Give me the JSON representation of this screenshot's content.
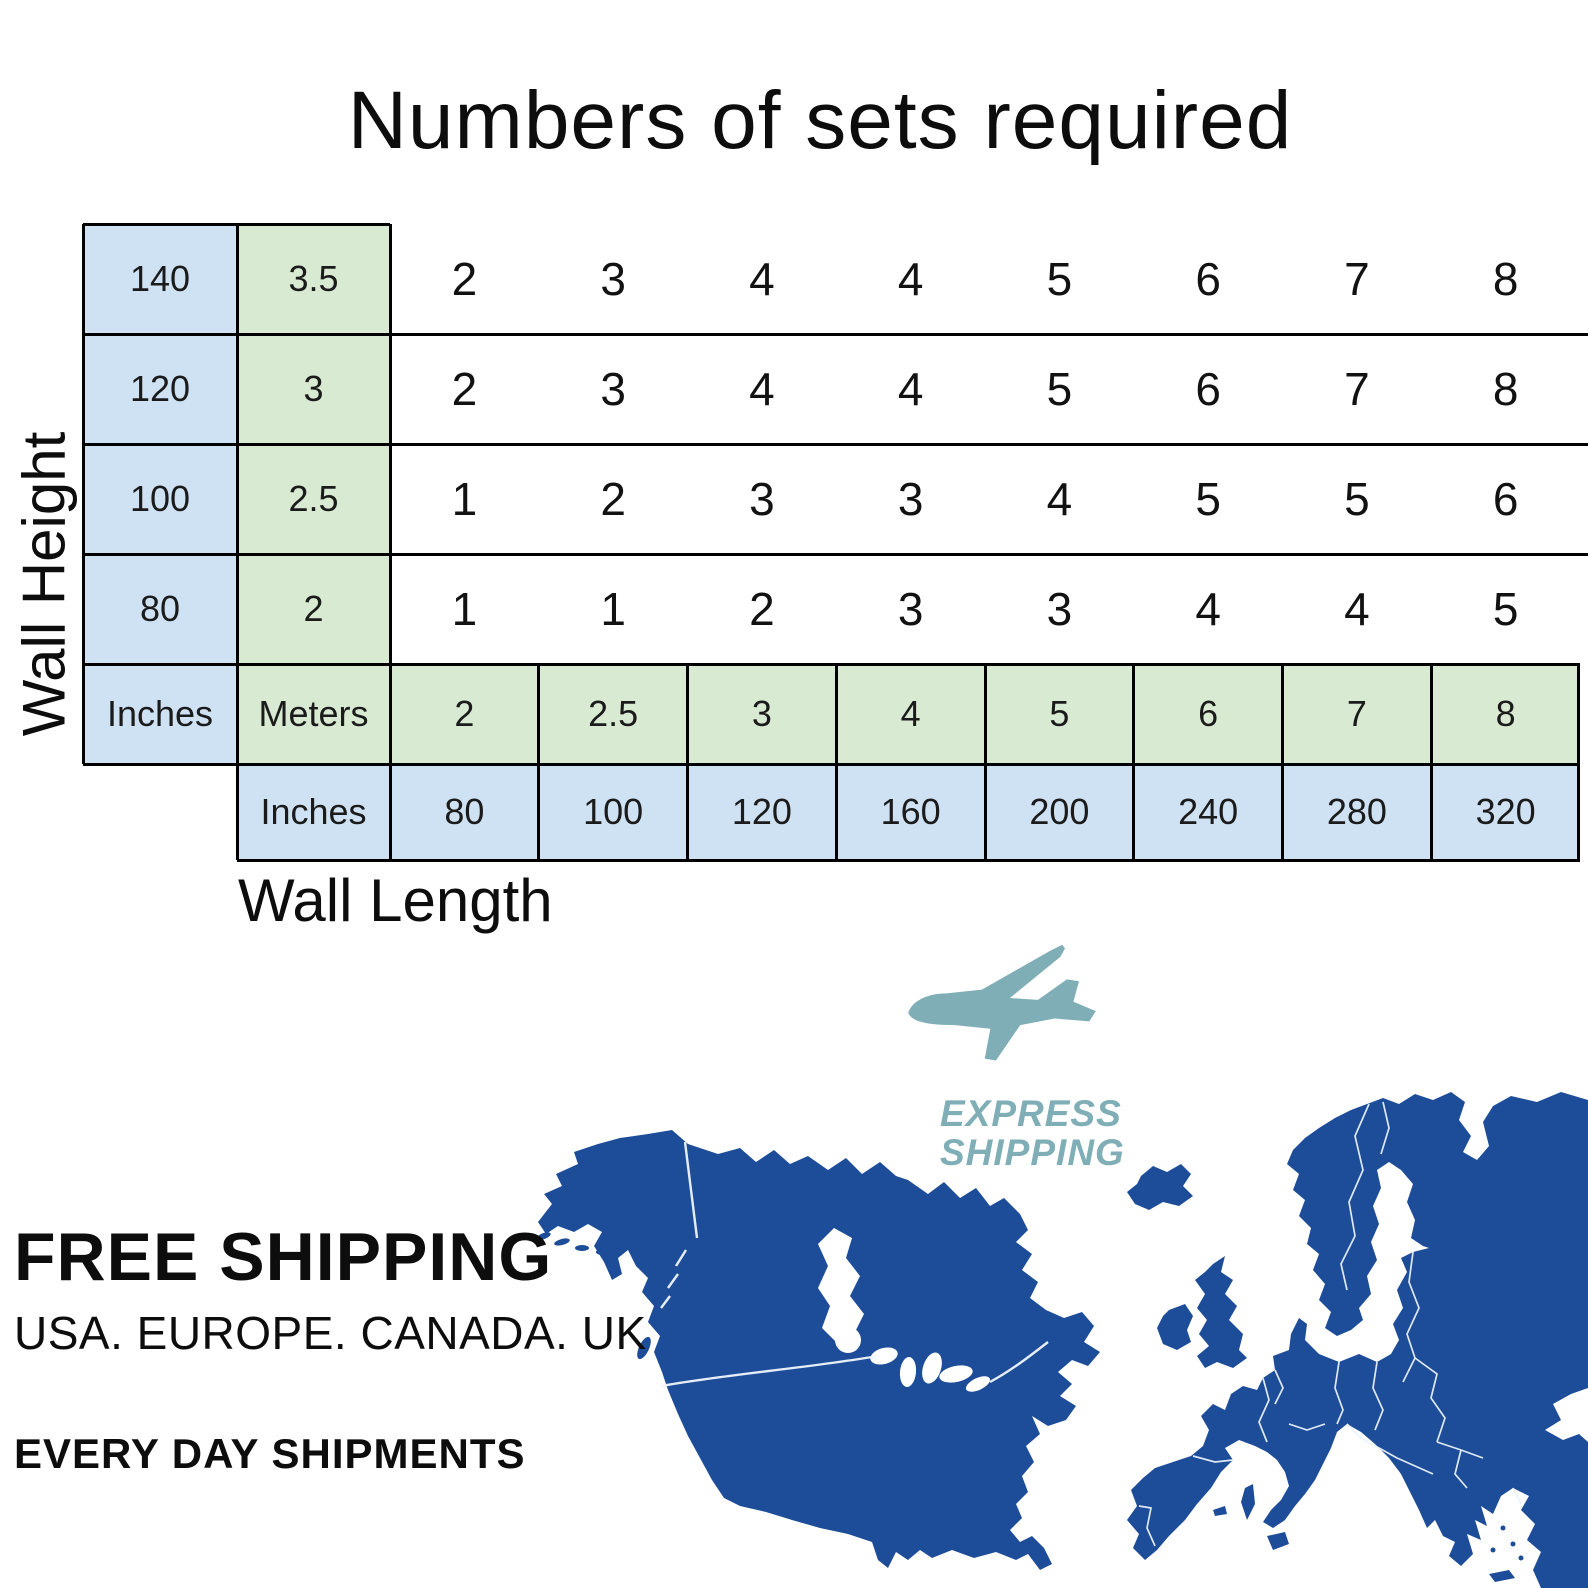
{
  "title": "Numbers of sets required",
  "chart_data": {
    "type": "table",
    "title": "Numbers of sets required",
    "xlabel": "Wall Length",
    "ylabel": "Wall Height",
    "wall_height": {
      "unit_label": "Inches",
      "meters_label": "Meters",
      "inches": [
        140,
        120,
        100,
        80
      ],
      "meters": [
        3.5,
        3,
        2.5,
        2
      ]
    },
    "wall_length": {
      "unit_label": "Inches",
      "meters": [
        2,
        2.5,
        3,
        4,
        5,
        6,
        7,
        8
      ],
      "inches": [
        80,
        100,
        120,
        160,
        200,
        240,
        280,
        320
      ]
    },
    "sets_required": [
      [
        2,
        3,
        4,
        4,
        5,
        6,
        7,
        8
      ],
      [
        2,
        3,
        4,
        4,
        5,
        6,
        7,
        8
      ],
      [
        1,
        2,
        3,
        3,
        4,
        5,
        5,
        6
      ],
      [
        1,
        1,
        2,
        3,
        3,
        4,
        4,
        5
      ]
    ]
  },
  "shipping": {
    "express_line1": "EXPRESS",
    "express_line2": "SHIPPING",
    "free_heading": "FREE SHIPPING",
    "regions": "USA. EUROPE. CANADA. UK",
    "everyday": "EVERY DAY SHIPMENTS"
  },
  "icons": {
    "airplane": "airplane-icon",
    "north_america": "north-america-map",
    "europe": "europe-map"
  },
  "colors": {
    "cell_blue": "#cfe2f3",
    "cell_green": "#d9ead3",
    "map_blue": "#1d4d99",
    "teal": "#7faeb6",
    "border": "#000000"
  }
}
